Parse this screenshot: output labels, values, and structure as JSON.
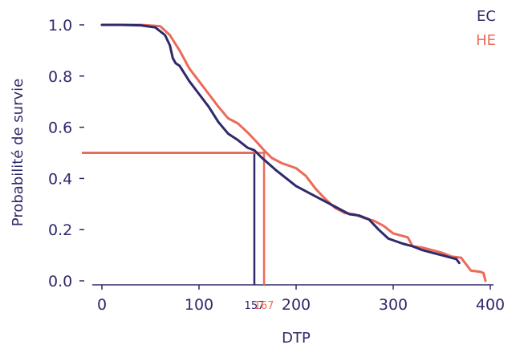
{
  "chart_data": {
    "type": "line",
    "xlabel": "DTP",
    "ylabel": "Probabilité de survie",
    "xlim": [
      0,
      400
    ],
    "ylim": [
      0,
      1.0
    ],
    "x_ticks": [
      {
        "value": 0,
        "label": "0"
      },
      {
        "value": 100,
        "label": "100"
      },
      {
        "value": 200,
        "label": "200"
      },
      {
        "value": 300,
        "label": "300"
      },
      {
        "value": 400,
        "label": "400"
      }
    ],
    "y_ticks": [
      {
        "value": 0.0,
        "label": "0.0"
      },
      {
        "value": 0.2,
        "label": "0.2"
      },
      {
        "value": 0.4,
        "label": "0.4"
      },
      {
        "value": 0.6,
        "label": "0.6"
      },
      {
        "value": 0.8,
        "label": "0.8"
      },
      {
        "value": 1.0,
        "label": "1.0"
      }
    ],
    "legend": "top-right",
    "series": [
      {
        "name": "EC",
        "color": "#2e2a6b",
        "median": 157,
        "median_label": "157",
        "x": [
          0,
          20,
          40,
          55,
          65,
          70,
          73,
          76,
          80,
          85,
          90,
          100,
          110,
          120,
          130,
          140,
          150,
          157,
          165,
          180,
          200,
          215,
          225,
          240,
          255,
          265,
          275,
          285,
          295,
          310,
          320,
          330,
          340,
          350,
          360,
          365,
          368
        ],
        "y": [
          1.0,
          1.0,
          0.998,
          0.99,
          0.96,
          0.92,
          0.87,
          0.85,
          0.84,
          0.81,
          0.78,
          0.73,
          0.68,
          0.62,
          0.575,
          0.55,
          0.52,
          0.51,
          0.48,
          0.43,
          0.37,
          0.34,
          0.32,
          0.29,
          0.26,
          0.255,
          0.24,
          0.2,
          0.165,
          0.145,
          0.135,
          0.12,
          0.11,
          0.1,
          0.09,
          0.085,
          0.07
        ]
      },
      {
        "name": "HE",
        "color": "#eb6a58",
        "median": 167,
        "median_label": "167",
        "x": [
          0,
          20,
          40,
          60,
          70,
          80,
          90,
          100,
          110,
          120,
          130,
          135,
          140,
          150,
          160,
          167,
          175,
          185,
          200,
          210,
          220,
          230,
          240,
          250,
          260,
          270,
          280,
          290,
          300,
          305,
          310,
          315,
          320,
          330,
          340,
          350,
          360,
          370,
          380,
          390,
          393,
          395
        ],
        "y": [
          1.0,
          1.0,
          1.0,
          0.995,
          0.96,
          0.9,
          0.83,
          0.78,
          0.73,
          0.68,
          0.635,
          0.625,
          0.615,
          0.58,
          0.54,
          0.51,
          0.48,
          0.46,
          0.44,
          0.41,
          0.36,
          0.32,
          0.285,
          0.265,
          0.26,
          0.245,
          0.235,
          0.215,
          0.185,
          0.18,
          0.175,
          0.17,
          0.135,
          0.13,
          0.12,
          0.11,
          0.095,
          0.09,
          0.04,
          0.035,
          0.03,
          0.0
        ]
      }
    ]
  }
}
